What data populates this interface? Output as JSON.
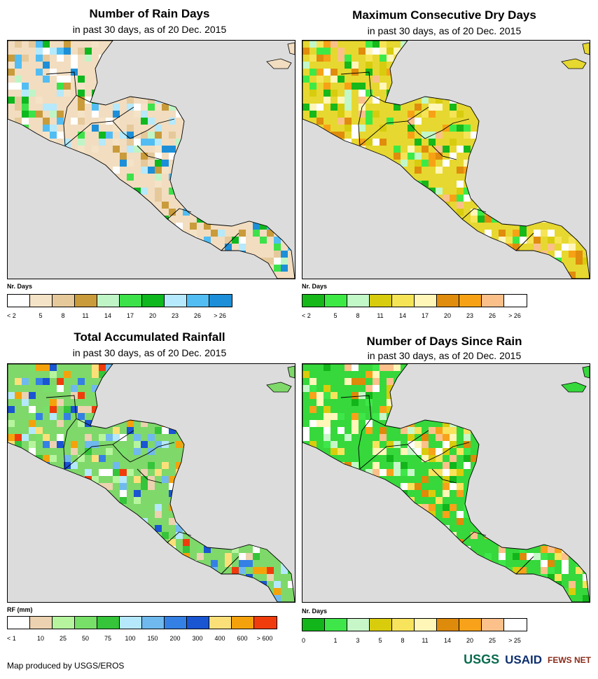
{
  "panels": [
    {
      "id": "rain-days",
      "title": "Number of Rain Days",
      "subtitle": "in past 30 days, as of 20 Dec. 2015",
      "legend_title": "Nr. Days",
      "colors": [
        "#ffffff",
        "#f5e3c7",
        "#e6c99b",
        "#c99b3a",
        "#bff5c6",
        "#3de24a",
        "#0fb81f",
        "#b5e9fb",
        "#52bdf2",
        "#1c8fd8"
      ],
      "labels": [
        "< 2",
        "5",
        "8",
        "11",
        "14",
        "17",
        "20",
        "23",
        "26",
        "> 26"
      ],
      "land_color": "#f2ddc0"
    },
    {
      "id": "max-dry-days",
      "title": "Maximum Consecutive Dry Days",
      "subtitle": "in past 30 days, as of 20 Dec. 2015",
      "legend_title": "Nr. Days",
      "colors": [
        "#16b81a",
        "#3dea45",
        "#c2f7c8",
        "#d8cc0f",
        "#f5e456",
        "#fff6b8",
        "#e08c0c",
        "#f7a216",
        "#fbc08a",
        "#ffffff"
      ],
      "labels": [
        "< 2",
        "5",
        "8",
        "11",
        "14",
        "17",
        "20",
        "23",
        "26",
        "> 26"
      ],
      "land_color": "#e6d830"
    },
    {
      "id": "total-rainfall",
      "title": "Total Accumulated Rainfall",
      "subtitle": "in past 30 days, as of 20 Dec. 2015",
      "legend_title": "RF (mm)",
      "colors": [
        "#ffffff",
        "#ecd2b0",
        "#b6f59e",
        "#78e068",
        "#35c43a",
        "#b5e8fb",
        "#6fb9ef",
        "#3480e4",
        "#1a55d2",
        "#fbe07a",
        "#f4a20c",
        "#f03c0c"
      ],
      "labels": [
        "< 1",
        "10",
        "25",
        "50",
        "75",
        "100",
        "150",
        "200",
        "300",
        "400",
        "600",
        "> 600"
      ],
      "land_color": "#7fd86a"
    },
    {
      "id": "days-since-rain",
      "title": "Number of Days Since Rain",
      "subtitle": "in past 30 days, as of 20 Dec. 2015",
      "legend_title": "Nr. Days",
      "colors": [
        "#12b51a",
        "#3ee649",
        "#c7f7c9",
        "#d9cc0d",
        "#f7e35c",
        "#fff6b8",
        "#de8a0a",
        "#f7a21a",
        "#fcc18a",
        "#ffffff"
      ],
      "labels": [
        "0",
        "1",
        "3",
        "5",
        "8",
        "11",
        "14",
        "20",
        "25",
        "> 25"
      ],
      "land_color": "#36d83c"
    }
  ],
  "footer": {
    "credit": "Map produced by USGS/EROS",
    "logos": [
      "USGS",
      "USAID",
      "FEWS NET"
    ],
    "icons": [
      "usgs-logo",
      "usaid-seal",
      "fews-net-logo"
    ]
  }
}
